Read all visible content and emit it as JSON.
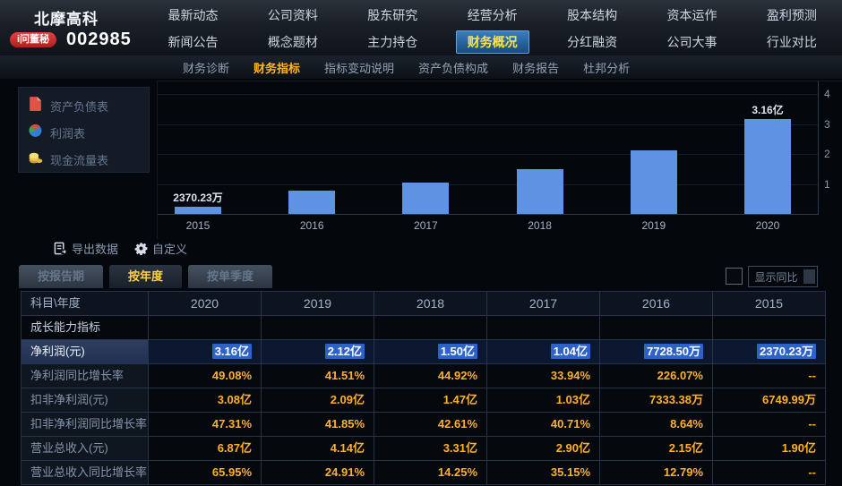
{
  "header": {
    "stock_name": "北摩高科",
    "stock_code": "002985",
    "ask_badge": "i问董秘",
    "nav_row1": [
      "最新动态",
      "公司资料",
      "股东研究",
      "经营分析",
      "股本结构",
      "资本运作",
      "盈利预测"
    ],
    "nav_row2": [
      "新闻公告",
      "概念题材",
      "主力持仓",
      "财务概况",
      "分红融资",
      "公司大事",
      "行业对比"
    ],
    "active_nav": "财务概况"
  },
  "subnav": {
    "items": [
      "财务诊断",
      "财务指标",
      "指标变动说明",
      "资产负债构成",
      "财务报告",
      "杜邦分析"
    ],
    "active": "财务指标"
  },
  "sidebar": {
    "items": [
      {
        "label": "资产负债表",
        "icon": "balance-sheet-icon"
      },
      {
        "label": "利润表",
        "icon": "income-statement-icon"
      },
      {
        "label": "现金流量表",
        "icon": "cashflow-icon"
      }
    ]
  },
  "chart_data": {
    "type": "bar",
    "categories": [
      "2015",
      "2016",
      "2017",
      "2018",
      "2019",
      "2020"
    ],
    "values": [
      0.237023,
      0.77285,
      1.04,
      1.5,
      2.12,
      3.16
    ],
    "unit": "亿",
    "point_labels": {
      "2015": "2370.23万",
      "2020": "3.16亿"
    },
    "ylim": [
      0,
      4.2
    ],
    "yticks": [
      1,
      2,
      3,
      4
    ],
    "y_axis_side": "right",
    "grid": true,
    "bar_color": "#5e93e4"
  },
  "toolbar": {
    "export_label": "导出数据",
    "customize_label": "自定义"
  },
  "tabs": {
    "items": [
      "按报告期",
      "按年度",
      "按单季度"
    ],
    "active": "按年度"
  },
  "compare_toggle": {
    "label": "显示同比",
    "checked": false
  },
  "table": {
    "header": [
      "科目\\年度",
      "2020",
      "2019",
      "2018",
      "2017",
      "2016",
      "2015"
    ],
    "section": "成长能力指标",
    "rows": [
      {
        "label": "净利润(元)",
        "values": [
          "3.16亿",
          "2.12亿",
          "1.50亿",
          "1.04亿",
          "7728.50万",
          "2370.23万"
        ],
        "selected": true
      },
      {
        "label": "净利润同比增长率",
        "values": [
          "49.08%",
          "41.51%",
          "44.92%",
          "33.94%",
          "226.07%",
          "--"
        ],
        "selected": false
      },
      {
        "label": "扣非净利润(元)",
        "values": [
          "3.08亿",
          "2.09亿",
          "1.47亿",
          "1.03亿",
          "7333.38万",
          "6749.99万"
        ],
        "selected": false
      },
      {
        "label": "扣非净利润同比增长率",
        "values": [
          "47.31%",
          "41.85%",
          "42.61%",
          "40.71%",
          "8.64%",
          "--"
        ],
        "selected": false
      },
      {
        "label": "营业总收入(元)",
        "values": [
          "6.87亿",
          "4.14亿",
          "3.31亿",
          "2.90亿",
          "2.15亿",
          "1.90亿"
        ],
        "selected": false
      },
      {
        "label": "营业总收入同比增长率",
        "values": [
          "65.95%",
          "24.91%",
          "14.25%",
          "35.15%",
          "12.79%",
          "--"
        ],
        "selected": false
      }
    ]
  },
  "colors": {
    "bar": "#5e93e4",
    "value_text": "#ffb12a",
    "selected_chip": "#2d63c9",
    "active_nav_text": "#ffe34d",
    "active_subnav_text": "#ffb61e",
    "badge_red": "#c22525"
  }
}
